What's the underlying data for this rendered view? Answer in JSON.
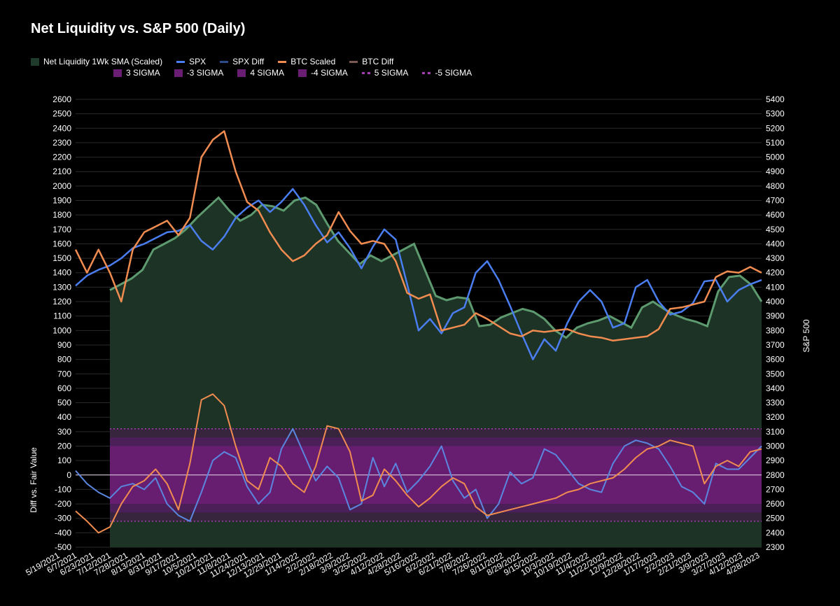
{
  "title": "Net Liquidity vs. S&P 500 (Daily)",
  "legend": {
    "row1": [
      {
        "label": "Net Liquidity 1Wk SMA (Scaled)",
        "kind": "box",
        "color": "#1f3b2b"
      },
      {
        "label": "SPX",
        "kind": "line",
        "color": "#4a7ef0"
      },
      {
        "label": "SPX Diff",
        "kind": "line",
        "color": "#2f4c8a"
      },
      {
        "label": "BTC Scaled",
        "kind": "line",
        "color": "#f08c50"
      },
      {
        "label": "BTC Diff",
        "kind": "line",
        "color": "#7a5a52"
      }
    ],
    "row2": [
      {
        "label": "3 SIGMA",
        "kind": "box",
        "color": "#6a1e73"
      },
      {
        "label": "-3 SIGMA",
        "kind": "box",
        "color": "#6a1e73"
      },
      {
        "label": "4 SIGMA",
        "kind": "box",
        "color": "#6a1e73"
      },
      {
        "label": "-4 SIGMA",
        "kind": "box",
        "color": "#6a1e73"
      },
      {
        "label": "5 SIGMA",
        "kind": "dot",
        "color": "#a43bb3"
      },
      {
        "label": "-5 SIGMA",
        "kind": "dot",
        "color": "#a43bb3"
      }
    ]
  },
  "chart_data": {
    "type": "line",
    "title": "Net Liquidity vs. S&P 500 (Daily)",
    "left_axis": {
      "label": "Diff vs. Fair Value",
      "range": [
        -500,
        2600
      ],
      "ticks": [
        -500,
        -400,
        -300,
        -200,
        -100,
        0,
        100,
        200,
        300,
        400,
        500,
        600,
        700,
        800,
        900,
        1000,
        1100,
        1200,
        1300,
        1400,
        1500,
        1600,
        1700,
        1800,
        1900,
        2000,
        2100,
        2200,
        2300,
        2400,
        2500,
        2600
      ]
    },
    "right_axis": {
      "label": "S&P 500",
      "range": [
        2300,
        5400
      ],
      "ticks": [
        2300,
        2400,
        2500,
        2600,
        2700,
        2800,
        2900,
        3000,
        3100,
        3200,
        3300,
        3400,
        3500,
        3600,
        3700,
        3800,
        3900,
        4000,
        4100,
        4200,
        4300,
        4400,
        4500,
        4600,
        4700,
        4800,
        4900,
        5000,
        5100,
        5200,
        5300,
        5400
      ]
    },
    "x_ticks": [
      "5/19/2021",
      "6/7/2021",
      "6/23/2021",
      "7/12/2021",
      "7/28/2021",
      "8/13/2021",
      "8/31/2021",
      "9/17/2021",
      "10/5/2021",
      "10/21/2021",
      "11/8/2021",
      "11/24/2021",
      "12/13/2021",
      "12/29/2021",
      "1/14/2022",
      "2/2/2022",
      "2/18/2022",
      "3/9/2022",
      "3/25/2022",
      "4/12/2022",
      "4/28/2022",
      "5/16/2022",
      "6/2/2022",
      "6/21/2022",
      "7/8/2022",
      "7/26/2022",
      "8/11/2022",
      "8/29/2022",
      "9/15/2022",
      "10/3/2022",
      "10/19/2022",
      "11/4/2022",
      "11/22/2022",
      "12/9/2022",
      "12/28/2022",
      "1/17/2023",
      "2/2/2023",
      "2/21/2023",
      "3/9/2023",
      "3/27/2023",
      "4/12/2023",
      "4/28/2023"
    ],
    "series": [
      {
        "name": "Net Liquidity 1Wk SMA (Scaled)",
        "axis": "left",
        "color": "#5e9a6f",
        "fill": "#1d3325",
        "start_index": 3,
        "values": [
          1280,
          1320,
          1360,
          1420,
          1560,
          1600,
          1640,
          1700,
          1780,
          1850,
          1920,
          1830,
          1760,
          1800,
          1870,
          1860,
          1830,
          1900,
          1920,
          1870,
          1740,
          1620,
          1540,
          1460,
          1520,
          1480,
          1520,
          1560,
          1600,
          1420,
          1240,
          1210,
          1230,
          1220,
          1030,
          1040,
          1090,
          1120,
          1150,
          1130,
          1080,
          1000,
          950,
          1020,
          1050,
          1070,
          1100,
          1060,
          1020,
          1160,
          1200,
          1150,
          1110,
          1080,
          1060,
          1030,
          1270,
          1370,
          1380,
          1320,
          1200
        ]
      },
      {
        "name": "SPX",
        "axis": "right",
        "color": "#4a7ef0",
        "values": [
          4110,
          4180,
          4220,
          4250,
          4300,
          4370,
          4400,
          4440,
          4480,
          4490,
          4530,
          4420,
          4360,
          4450,
          4580,
          4650,
          4700,
          4620,
          4690,
          4780,
          4670,
          4530,
          4410,
          4480,
          4370,
          4230,
          4380,
          4500,
          4430,
          4120,
          3800,
          3880,
          3780,
          3920,
          3960,
          4200,
          4280,
          4150,
          3970,
          3780,
          3600,
          3740,
          3660,
          3850,
          4000,
          4080,
          4000,
          3820,
          3850,
          4100,
          4150,
          4000,
          3910,
          3930,
          3990,
          4140,
          4150,
          4000,
          4080,
          4120,
          4150
        ]
      },
      {
        "name": "BTC Scaled",
        "axis": "left",
        "color": "#f08c50",
        "values": [
          1560,
          1400,
          1560,
          1400,
          1200,
          1560,
          1680,
          1720,
          1760,
          1660,
          1780,
          2200,
          2320,
          2380,
          2100,
          1890,
          1830,
          1680,
          1560,
          1480,
          1520,
          1600,
          1660,
          1820,
          1690,
          1600,
          1620,
          1600,
          1480,
          1260,
          1220,
          1250,
          1000,
          1020,
          1040,
          1120,
          1080,
          1030,
          980,
          960,
          1000,
          990,
          1000,
          1010,
          980,
          960,
          950,
          930,
          940,
          950,
          960,
          1010,
          1150,
          1160,
          1180,
          1200,
          1370,
          1410,
          1400,
          1440,
          1400
        ]
      },
      {
        "name": "SPX Diff",
        "axis": "left",
        "color": "#5b86e0",
        "values": [
          30,
          -60,
          -120,
          -160,
          -80,
          -60,
          -100,
          -20,
          -200,
          -280,
          -320,
          -120,
          100,
          160,
          120,
          -80,
          -200,
          -120,
          180,
          320,
          140,
          -40,
          60,
          -20,
          -240,
          -200,
          120,
          -80,
          80,
          -120,
          -40,
          60,
          200,
          -40,
          -160,
          -100,
          -300,
          -200,
          20,
          -60,
          -20,
          180,
          140,
          40,
          -60,
          -100,
          -120,
          80,
          200,
          240,
          220,
          180,
          60,
          -80,
          -120,
          -200,
          80,
          40,
          40,
          120,
          200
        ]
      },
      {
        "name": "BTC Diff",
        "axis": "left",
        "color": "#f08c50",
        "values": [
          -250,
          -320,
          -400,
          -360,
          -200,
          -80,
          -40,
          40,
          -60,
          -240,
          80,
          520,
          560,
          480,
          200,
          -40,
          -100,
          120,
          60,
          -60,
          -120,
          60,
          340,
          320,
          160,
          -180,
          -140,
          40,
          -40,
          -140,
          -220,
          -160,
          -80,
          -20,
          -60,
          -220,
          -280,
          -260,
          -240,
          -220,
          -200,
          -180,
          -160,
          -120,
          -100,
          -60,
          -40,
          -20,
          40,
          120,
          180,
          200,
          240,
          220,
          200,
          -60,
          60,
          100,
          60,
          160,
          180
        ]
      }
    ],
    "bands": [
      {
        "name": "5 SIGMA",
        "upper": 320,
        "lower": -320
      },
      {
        "name": "4 SIGMA",
        "upper": 260,
        "lower": -260
      },
      {
        "name": "3 SIGMA",
        "upper": 200,
        "lower": -200
      }
    ],
    "zero_line": 0,
    "grid": true
  }
}
